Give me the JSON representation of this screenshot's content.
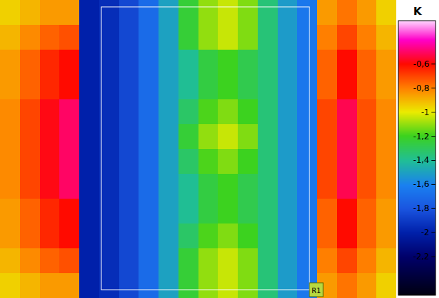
{
  "chart_data": {
    "type": "heatmap",
    "title": "K",
    "annotation": "R1",
    "color_range": [
      -2.52,
      -0.24
    ],
    "color_ticks": [
      {
        "value": -0.6,
        "label": "-0,6"
      },
      {
        "value": -0.8,
        "label": "-0,8"
      },
      -1,
      {
        "value": -1.2,
        "label": "-1,2"
      },
      {
        "value": -1.4,
        "label": "-1,4"
      },
      {
        "value": -1.6,
        "label": "-1,6"
      },
      {
        "value": -1.8,
        "label": "-1,8"
      },
      -2,
      {
        "value": -2.2,
        "label": "-2,2"
      }
    ],
    "cells": [
      [
        -0.95,
        -0.9,
        -0.85,
        -0.85,
        -2.0,
        -1.95,
        -1.85,
        -1.7,
        -1.5,
        -1.24,
        -1.1,
        -1.04,
        -1.12,
        -1.35,
        -1.52,
        -1.65,
        -0.85,
        -0.78,
        -0.85,
        -0.95
      ],
      [
        -0.9,
        -0.82,
        -0.75,
        -0.72,
        -2.0,
        -1.95,
        -1.85,
        -1.7,
        -1.5,
        -1.24,
        -1.1,
        -1.04,
        -1.12,
        -1.35,
        -1.52,
        -1.65,
        -0.8,
        -0.7,
        -0.8,
        -0.9
      ],
      [
        -0.85,
        -0.75,
        -0.65,
        -0.6,
        -2.0,
        -1.95,
        -1.85,
        -1.7,
        -1.5,
        -1.4,
        -1.26,
        -1.2,
        -1.28,
        -1.35,
        -1.52,
        -1.65,
        -0.75,
        -0.6,
        -0.75,
        -0.85
      ],
      [
        -0.85,
        -0.75,
        -0.65,
        -0.6,
        -2.0,
        -1.95,
        -1.85,
        -1.7,
        -1.5,
        -1.4,
        -1.26,
        -1.2,
        -1.28,
        -1.35,
        -1.52,
        -1.65,
        -0.75,
        -0.6,
        -0.75,
        -0.85
      ],
      [
        -0.82,
        -0.7,
        -0.58,
        -0.5,
        -2.0,
        -1.95,
        -1.85,
        -1.7,
        -1.5,
        -1.32,
        -1.18,
        -1.12,
        -1.2,
        -1.35,
        -1.52,
        -1.65,
        -0.7,
        -0.52,
        -0.72,
        -0.82
      ],
      [
        -0.82,
        -0.7,
        -0.58,
        -0.5,
        -2.0,
        -1.95,
        -1.85,
        -1.7,
        -1.5,
        -1.24,
        -1.1,
        -1.04,
        -1.12,
        -1.35,
        -1.52,
        -1.65,
        -0.7,
        -0.52,
        -0.72,
        -0.82
      ],
      [
        -0.82,
        -0.7,
        -0.58,
        -0.5,
        -2.0,
        -1.95,
        -1.85,
        -1.7,
        -1.5,
        -1.32,
        -1.18,
        -1.12,
        -1.2,
        -1.35,
        -1.52,
        -1.65,
        -0.7,
        -0.52,
        -0.72,
        -0.82
      ],
      [
        -0.82,
        -0.7,
        -0.58,
        -0.5,
        -2.0,
        -1.95,
        -1.85,
        -1.7,
        -1.5,
        -1.4,
        -1.26,
        -1.2,
        -1.28,
        -1.35,
        -1.52,
        -1.65,
        -0.7,
        -0.52,
        -0.72,
        -0.82
      ],
      [
        -0.85,
        -0.75,
        -0.65,
        -0.6,
        -2.0,
        -1.95,
        -1.85,
        -1.7,
        -1.5,
        -1.4,
        -1.26,
        -1.2,
        -1.28,
        -1.35,
        -1.52,
        -1.65,
        -0.75,
        -0.6,
        -0.75,
        -0.85
      ],
      [
        -0.85,
        -0.75,
        -0.65,
        -0.6,
        -2.0,
        -1.95,
        -1.85,
        -1.7,
        -1.5,
        -1.32,
        -1.18,
        -1.12,
        -1.2,
        -1.35,
        -1.52,
        -1.65,
        -0.75,
        -0.6,
        -0.75,
        -0.85
      ],
      [
        -0.9,
        -0.82,
        -0.75,
        -0.72,
        -2.0,
        -1.95,
        -1.85,
        -1.7,
        -1.5,
        -1.24,
        -1.1,
        -1.04,
        -1.12,
        -1.35,
        -1.52,
        -1.65,
        -0.8,
        -0.7,
        -0.8,
        -0.9
      ],
      [
        -0.95,
        -0.9,
        -0.85,
        -0.85,
        -2.0,
        -1.95,
        -1.85,
        -1.7,
        -1.5,
        -1.24,
        -1.1,
        -1.04,
        -1.12,
        -1.35,
        -1.52,
        -1.65,
        -0.85,
        -0.78,
        -0.85,
        -0.95
      ]
    ]
  }
}
